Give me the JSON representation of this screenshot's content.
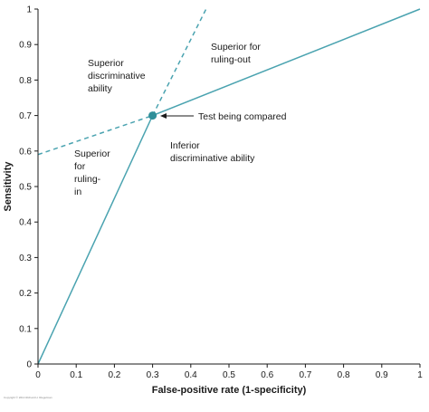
{
  "chart_data": {
    "type": "line",
    "xlabel": "False-positive rate (1-specificity)",
    "ylabel": "Sensitivity",
    "xlim": [
      0,
      1
    ],
    "ylim": [
      0,
      1
    ],
    "x_ticks": [
      "0",
      "0.1",
      "0.2",
      "0.3",
      "0.4",
      "0.5",
      "0.6",
      "0.7",
      "0.8",
      "0.9",
      "1"
    ],
    "y_ticks": [
      "0",
      "0.1",
      "0.2",
      "0.3",
      "0.4",
      "0.5",
      "0.6",
      "0.7",
      "0.8",
      "0.9",
      "1"
    ],
    "grid": false,
    "color": "#4aa3b0",
    "point": {
      "x": 0.3,
      "y": 0.7
    },
    "series": [
      {
        "style": "solid",
        "x": [
          0,
          0.3
        ],
        "y": [
          0,
          0.7
        ]
      },
      {
        "style": "solid",
        "x": [
          0.3,
          1
        ],
        "y": [
          0.7,
          1
        ]
      },
      {
        "style": "dashed",
        "x": [
          0,
          0.3
        ],
        "y": [
          0.59,
          0.7
        ]
      },
      {
        "style": "dashed",
        "x": [
          0.3,
          0.44
        ],
        "y": [
          0.7,
          1
        ]
      }
    ],
    "annotations": {
      "superior_ruling_out": [
        "Superior for",
        "ruling-out"
      ],
      "superior_discriminative": [
        "Superior",
        "discriminative",
        "ability"
      ],
      "superior_ruling_in": [
        "Superior",
        "for",
        "ruling-",
        "in"
      ],
      "inferior": [
        "Inferior",
        "discriminative ability"
      ],
      "test_label": "Test being compared"
    },
    "copyright": "Copyright © 2014 Richard H. Riegelman"
  }
}
